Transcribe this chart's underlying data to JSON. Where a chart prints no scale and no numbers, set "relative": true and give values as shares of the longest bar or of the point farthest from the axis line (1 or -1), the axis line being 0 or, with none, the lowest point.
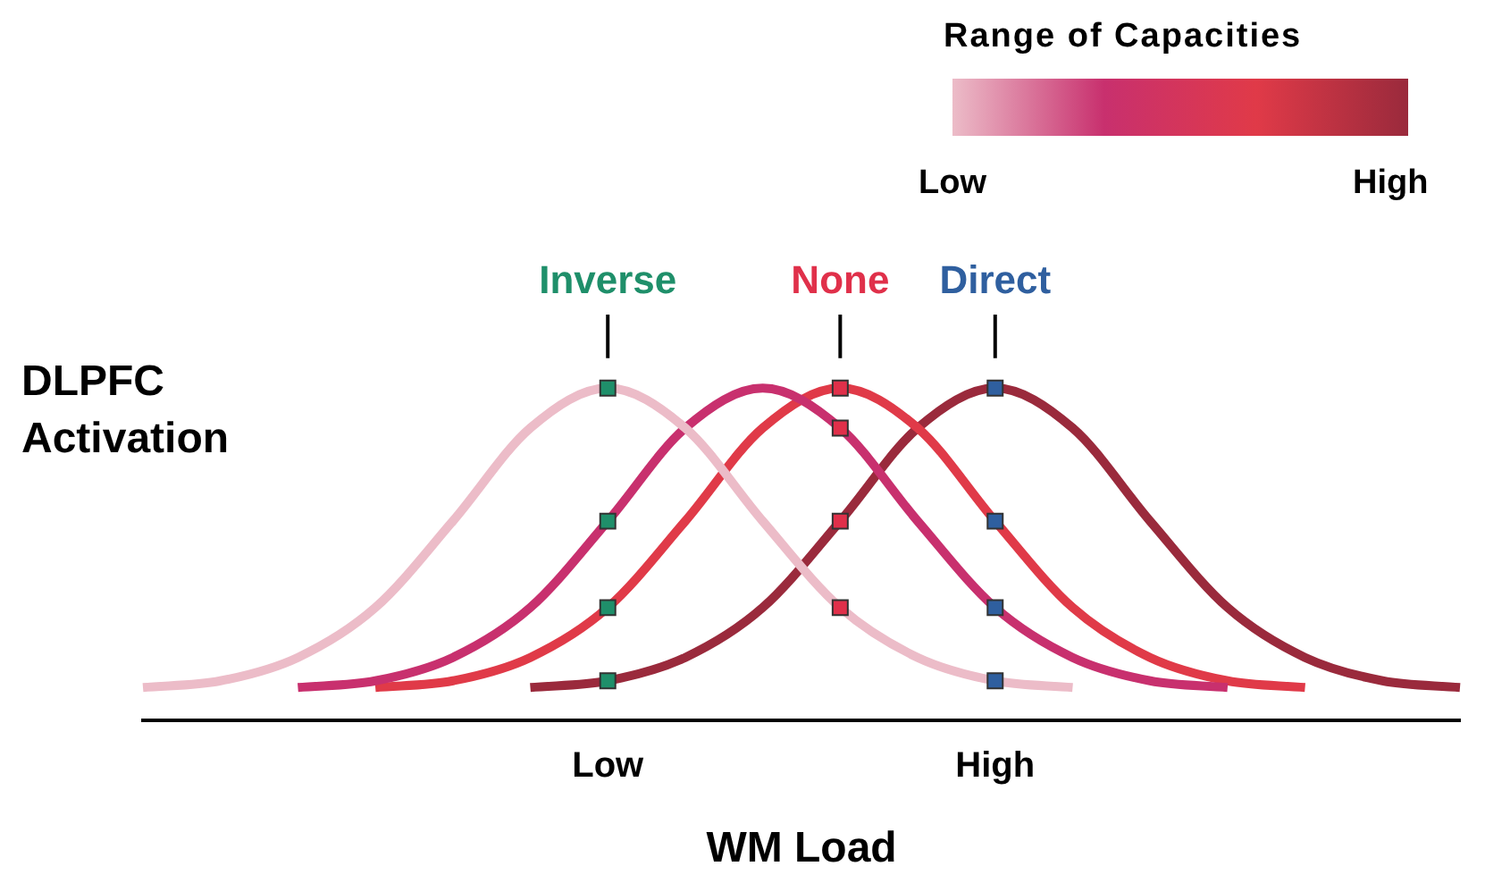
{
  "chart_data": {
    "type": "line",
    "relative": true,
    "ylabel": "DLPFC Activation",
    "xlabel": "WM Load",
    "legend_title": "Range of Capacities",
    "grid": false,
    "legend": false,
    "line_style": "solid",
    "categories": [
      null,
      null,
      null,
      null,
      null,
      null,
      "Low",
      null,
      null,
      null,
      null,
      "High",
      null,
      null,
      null,
      null,
      null,
      null
    ],
    "series": [
      {
        "type": "line",
        "marker": "none",
        "color": "#ecbcc8",
        "values": [
          0.1,
          0.12,
          0.19,
          0.34,
          0.6,
          0.88,
          1,
          0.88,
          0.6,
          0.34,
          0.19,
          0.12,
          0.1,
          null,
          null,
          null,
          null,
          null
        ]
      },
      {
        "type": "line",
        "marker": "none",
        "color": "#c8306e",
        "values": [
          null,
          null,
          0.1,
          0.12,
          0.19,
          0.34,
          0.6,
          0.88,
          1,
          0.88,
          0.6,
          0.34,
          0.19,
          0.12,
          0.1,
          null,
          null,
          null
        ]
      },
      {
        "type": "line",
        "marker": "none",
        "color": "#e03a48",
        "values": [
          null,
          null,
          null,
          0.1,
          0.12,
          0.19,
          0.34,
          0.6,
          0.88,
          1,
          0.88,
          0.6,
          0.34,
          0.19,
          0.12,
          0.1,
          null,
          null
        ]
      },
      {
        "type": "line",
        "marker": "none",
        "color": "#9a2a3c",
        "values": [
          null,
          null,
          null,
          null,
          null,
          0.1,
          0.12,
          0.19,
          0.34,
          0.6,
          0.88,
          1,
          0.88,
          0.6,
          0.34,
          0.19,
          0.12,
          0.1
        ]
      },
      {
        "type": "scatter",
        "marker": "square",
        "colors": [
          null,
          null,
          null,
          null,
          null,
          null,
          "#1f8f6a",
          null,
          null,
          "#e0304a",
          null,
          "#2f5f9f",
          null,
          null,
          null,
          null,
          null,
          null
        ],
        "values": [
          null,
          null,
          null,
          null,
          null,
          null,
          1,
          null,
          null,
          0.34,
          null,
          0.12,
          null,
          null,
          null,
          null,
          null,
          null
        ]
      },
      {
        "type": "scatter",
        "marker": "square",
        "colors": [
          null,
          null,
          null,
          null,
          null,
          null,
          "#1f8f6a",
          null,
          null,
          "#e0304a",
          null,
          "#2f5f9f",
          null,
          null,
          null,
          null,
          null,
          null
        ],
        "values": [
          null,
          null,
          null,
          null,
          null,
          null,
          0.6,
          null,
          null,
          0.88,
          null,
          0.34,
          null,
          null,
          null,
          null,
          null,
          null
        ]
      },
      {
        "type": "scatter",
        "marker": "square",
        "colors": [
          null,
          null,
          null,
          null,
          null,
          null,
          "#1f8f6a",
          null,
          null,
          "#e0304a",
          null,
          "#2f5f9f",
          null,
          null,
          null,
          null,
          null,
          null
        ],
        "values": [
          null,
          null,
          null,
          null,
          null,
          null,
          0.34,
          null,
          null,
          1,
          null,
          0.6,
          null,
          null,
          null,
          null,
          null,
          null
        ]
      },
      {
        "type": "scatter",
        "marker": "square",
        "colors": [
          null,
          null,
          null,
          null,
          null,
          null,
          "#1f8f6a",
          null,
          null,
          "#e0304a",
          null,
          "#2f5f9f",
          null,
          null,
          null,
          null,
          null,
          null
        ],
        "values": [
          null,
          null,
          null,
          null,
          null,
          null,
          0.12,
          null,
          null,
          0.6,
          null,
          1,
          null,
          null,
          null,
          null,
          null,
          null
        ]
      }
    ],
    "annotations": [
      "Inverse",
      "None",
      "Direct",
      "Low",
      "High"
    ]
  }
}
